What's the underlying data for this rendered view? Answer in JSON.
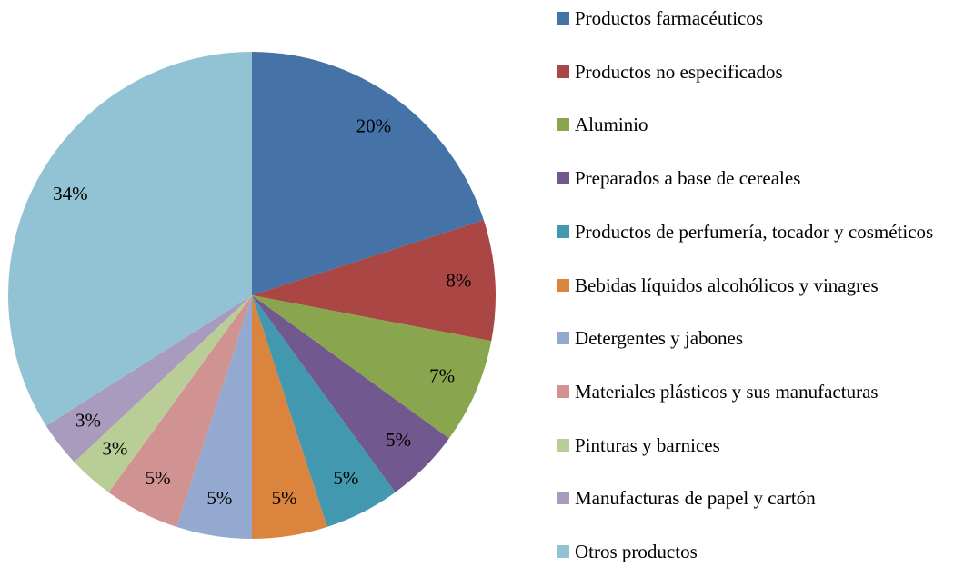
{
  "chart_data": {
    "type": "pie",
    "categories": [
      "Productos farmacéuticos",
      "Productos no especificados",
      "Aluminio",
      "Preparados a base de cereales",
      "Productos de perfumería, tocador y cosméticos",
      "Bebidas líquidos alcohólicos y vinagres",
      "Detergentes y jabones",
      "Materiales plásticos y sus manufacturas",
      "Pinturas y barnices",
      "Manufacturas de papel y cartón",
      "Otros productos"
    ],
    "values": [
      20,
      8,
      7,
      5,
      5,
      5,
      5,
      5,
      3,
      3,
      34
    ],
    "value_labels": [
      "20%",
      "8%",
      "7%",
      "5%",
      "5%",
      "5%",
      "5%",
      "5%",
      "3%",
      "3%",
      "34%"
    ],
    "colors": [
      "#4572a7",
      "#aa4643",
      "#89a54e",
      "#71588f",
      "#4198af",
      "#db843d",
      "#93a9cf",
      "#d19392",
      "#b9cd96",
      "#a99bbd",
      "#92c3d4"
    ],
    "legend": "right"
  }
}
